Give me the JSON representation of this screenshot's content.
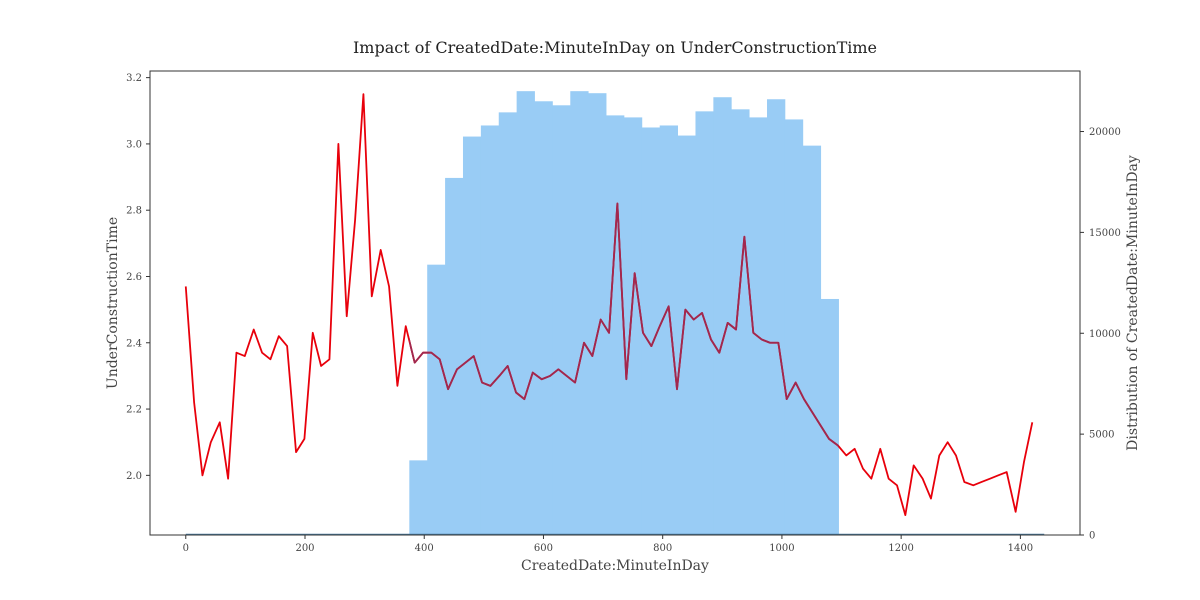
{
  "chart_data": {
    "type": "bar+line",
    "title": "Impact of CreatedDate:MinuteInDay on UnderConstructionTime",
    "xlabel": "CreatedDate:MinuteInDay",
    "ylabel_left": "UnderConstructionTime",
    "ylabel_right": "Distribution of CreatedDate:MinuteInDay",
    "xlim": [
      -60,
      1500
    ],
    "ylim_left": [
      1.82,
      3.22
    ],
    "ylim_right": [
      0,
      23000
    ],
    "x_ticks": [
      "0",
      "200",
      "400",
      "600",
      "800",
      "1000",
      "1200",
      "1400"
    ],
    "y_left_ticks": [
      "2.0",
      "2.2",
      "2.4",
      "2.6",
      "2.8",
      "3.0",
      "3.2"
    ],
    "y_right_ticks": [
      "0",
      "5000",
      "10000",
      "15000",
      "20000"
    ],
    "colors": {
      "histogram": "#99ccf5",
      "line": "#e8000b",
      "line_over_bars": "#a0284f",
      "baseline": "#4a7fa5",
      "axis": "#333333"
    },
    "histogram": {
      "bin_width": 30,
      "bins": [
        {
          "x0": 375,
          "count": 3700
        },
        {
          "x0": 405,
          "count": 13400
        },
        {
          "x0": 435,
          "count": 17700
        },
        {
          "x0": 465,
          "count": 19750
        },
        {
          "x0": 495,
          "count": 20300
        },
        {
          "x0": 525,
          "count": 20950
        },
        {
          "x0": 555,
          "count": 22000
        },
        {
          "x0": 585,
          "count": 21500
        },
        {
          "x0": 615,
          "count": 21300
        },
        {
          "x0": 645,
          "count": 22000
        },
        {
          "x0": 675,
          "count": 21900
        },
        {
          "x0": 705,
          "count": 20800
        },
        {
          "x0": 735,
          "count": 20700
        },
        {
          "x0": 765,
          "count": 20200
        },
        {
          "x0": 795,
          "count": 20300
        },
        {
          "x0": 825,
          "count": 19800
        },
        {
          "x0": 855,
          "count": 21000
        },
        {
          "x0": 885,
          "count": 21700
        },
        {
          "x0": 915,
          "count": 21100
        },
        {
          "x0": 945,
          "count": 20700
        },
        {
          "x0": 975,
          "count": 21600
        },
        {
          "x0": 1005,
          "count": 20600
        },
        {
          "x0": 1035,
          "count": 19300
        },
        {
          "x0": 1065,
          "count": 11700
        }
      ],
      "baseline_range": [
        0,
        1440
      ]
    },
    "series": [
      {
        "x": [
          0,
          14,
          28,
          42,
          57,
          71,
          85,
          99,
          114,
          128,
          142,
          156,
          170,
          185,
          199,
          213,
          227,
          241,
          256,
          270,
          284,
          298,
          312,
          327,
          341,
          355,
          369,
          384,
          398,
          412,
          426,
          440,
          455,
          469,
          483,
          497,
          511,
          526,
          540,
          554,
          568,
          582,
          597,
          611,
          625,
          639,
          653,
          668,
          682,
          696,
          710,
          724,
          739,
          753,
          767,
          781,
          795,
          810,
          824,
          838,
          852,
          866,
          881,
          895,
          909,
          923,
          937,
          952,
          966,
          980,
          994,
          1008,
          1023,
          1037,
          1051,
          1065,
          1079,
          1094,
          1108,
          1122,
          1136,
          1150,
          1165,
          1179,
          1193,
          1207,
          1221,
          1236,
          1250,
          1264,
          1278,
          1292,
          1306,
          1321,
          1335,
          1349,
          1363,
          1377,
          1392,
          1406,
          1420
        ],
        "y": [
          2.57,
          2.22,
          2.0,
          2.1,
          2.16,
          1.99,
          2.37,
          2.36,
          2.44,
          2.37,
          2.35,
          2.42,
          2.39,
          2.07,
          2.11,
          2.43,
          2.33,
          2.35,
          3.0,
          2.48,
          2.77,
          3.15,
          2.54,
          2.68,
          2.57,
          2.27,
          2.45,
          2.34,
          2.37,
          2.37,
          2.35,
          2.26,
          2.32,
          2.34,
          2.36,
          2.28,
          2.27,
          2.3,
          2.33,
          2.25,
          2.23,
          2.31,
          2.29,
          2.3,
          2.32,
          2.3,
          2.28,
          2.4,
          2.36,
          2.47,
          2.43,
          2.82,
          2.29,
          2.61,
          2.43,
          2.39,
          2.45,
          2.51,
          2.26,
          2.5,
          2.47,
          2.49,
          2.41,
          2.37,
          2.46,
          2.44,
          2.72,
          2.43,
          2.41,
          2.4,
          2.4,
          2.23,
          2.28,
          2.23,
          2.19,
          2.15,
          2.11,
          2.09,
          2.06,
          2.08,
          2.02,
          1.99,
          2.08,
          1.99,
          1.97,
          1.88,
          2.03,
          1.99,
          1.93,
          2.06,
          2.1,
          2.06,
          1.98,
          1.97,
          1.98,
          1.99,
          2.0,
          2.01,
          1.89,
          2.04,
          2.16
        ]
      }
    ]
  }
}
